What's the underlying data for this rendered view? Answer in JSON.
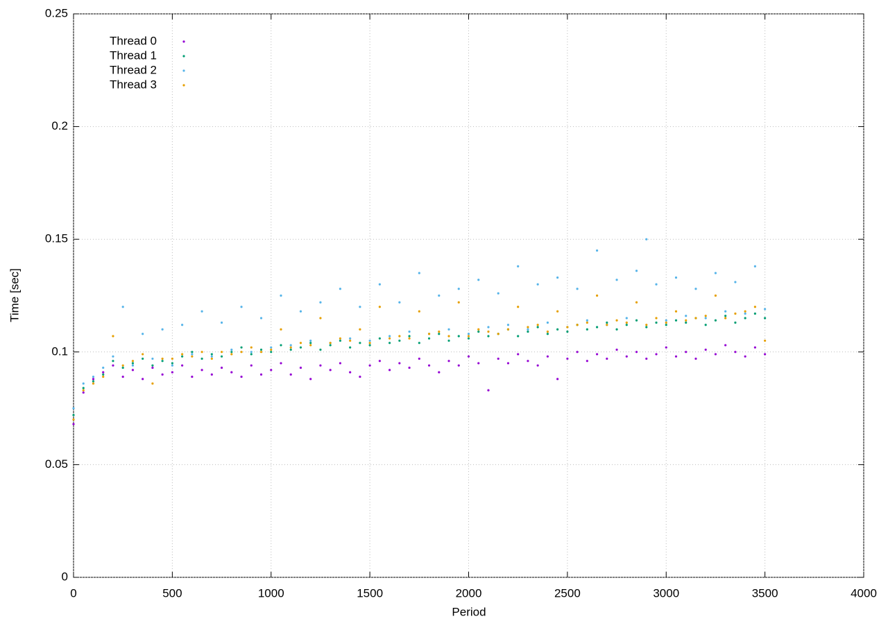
{
  "chart_data": {
    "type": "scatter",
    "x_label": "Period",
    "y_label": "Time [sec]",
    "xlim": [
      0,
      4000
    ],
    "ylim": [
      0,
      0.25
    ],
    "xticks": [
      0,
      500,
      1000,
      1500,
      2000,
      2500,
      3000,
      3500,
      4000
    ],
    "yticks": [
      0,
      0.05,
      0.1,
      0.15,
      0.2,
      0.25
    ],
    "grid": true,
    "legend": "top-left",
    "x": [
      0,
      50,
      100,
      150,
      200,
      250,
      300,
      350,
      400,
      450,
      500,
      550,
      600,
      650,
      700,
      750,
      800,
      850,
      900,
      950,
      1000,
      1050,
      1100,
      1150,
      1200,
      1250,
      1300,
      1350,
      1400,
      1450,
      1500,
      1550,
      1600,
      1650,
      1700,
      1750,
      1800,
      1850,
      1900,
      1950,
      2000,
      2050,
      2100,
      2150,
      2200,
      2250,
      2300,
      2350,
      2400,
      2450,
      2500,
      2550,
      2600,
      2650,
      2700,
      2750,
      2800,
      2850,
      2900,
      2950,
      3000,
      3050,
      3100,
      3150,
      3200,
      3250,
      3300,
      3350,
      3400,
      3450,
      3500
    ],
    "series": [
      {
        "name": "Thread 0",
        "color": "#9400d3",
        "values": [
          0.068,
          0.082,
          0.088,
          0.091,
          0.094,
          0.089,
          0.092,
          0.088,
          0.093,
          0.09,
          0.091,
          0.094,
          0.089,
          0.092,
          0.09,
          0.093,
          0.091,
          0.089,
          0.094,
          0.09,
          0.092,
          0.095,
          0.09,
          0.093,
          0.088,
          0.094,
          0.092,
          0.095,
          0.091,
          0.089,
          0.094,
          0.096,
          0.092,
          0.095,
          0.093,
          0.097,
          0.094,
          0.091,
          0.096,
          0.094,
          0.098,
          0.095,
          0.083,
          0.097,
          0.095,
          0.099,
          0.096,
          0.094,
          0.098,
          0.088,
          0.097,
          0.1,
          0.096,
          0.099,
          0.097,
          0.101,
          0.098,
          0.1,
          0.097,
          0.099,
          0.102,
          0.098,
          0.1,
          0.097,
          0.101,
          0.099,
          0.103,
          0.1,
          0.098,
          0.102,
          0.099
        ]
      },
      {
        "name": "Thread 1",
        "color": "#009e73",
        "values": [
          0.072,
          0.084,
          0.087,
          0.09,
          0.096,
          0.093,
          0.095,
          0.097,
          0.094,
          0.096,
          0.095,
          0.098,
          0.1,
          0.097,
          0.099,
          0.098,
          0.1,
          0.102,
          0.099,
          0.101,
          0.1,
          0.103,
          0.101,
          0.102,
          0.104,
          0.101,
          0.103,
          0.105,
          0.102,
          0.104,
          0.103,
          0.106,
          0.104,
          0.105,
          0.107,
          0.104,
          0.106,
          0.108,
          0.105,
          0.107,
          0.106,
          0.109,
          0.107,
          0.108,
          0.11,
          0.107,
          0.109,
          0.111,
          0.108,
          0.11,
          0.109,
          0.112,
          0.11,
          0.111,
          0.113,
          0.11,
          0.112,
          0.114,
          0.111,
          0.113,
          0.112,
          0.114,
          0.113,
          0.115,
          0.112,
          0.114,
          0.116,
          0.113,
          0.115,
          0.117,
          0.115
        ]
      },
      {
        "name": "Thread 2",
        "color": "#56b4e9",
        "values": [
          0.075,
          0.086,
          0.089,
          0.093,
          0.098,
          0.12,
          0.094,
          0.108,
          0.097,
          0.11,
          0.094,
          0.112,
          0.099,
          0.118,
          0.098,
          0.113,
          0.101,
          0.12,
          0.1,
          0.115,
          0.102,
          0.125,
          0.103,
          0.118,
          0.105,
          0.122,
          0.104,
          0.128,
          0.106,
          0.12,
          0.105,
          0.13,
          0.107,
          0.122,
          0.109,
          0.135,
          0.108,
          0.125,
          0.11,
          0.128,
          0.108,
          0.132,
          0.111,
          0.126,
          0.112,
          0.138,
          0.11,
          0.13,
          0.113,
          0.133,
          0.111,
          0.128,
          0.114,
          0.145,
          0.112,
          0.132,
          0.115,
          0.136,
          0.15,
          0.13,
          0.114,
          0.133,
          0.116,
          0.128,
          0.115,
          0.135,
          0.118,
          0.131,
          0.117,
          0.138,
          0.119
        ]
      },
      {
        "name": "Thread 3",
        "color": "#e69f00",
        "values": [
          0.07,
          0.083,
          0.086,
          0.089,
          0.107,
          0.094,
          0.096,
          0.099,
          0.086,
          0.097,
          0.097,
          0.099,
          0.098,
          0.1,
          0.097,
          0.1,
          0.099,
          0.1,
          0.102,
          0.1,
          0.101,
          0.11,
          0.102,
          0.104,
          0.103,
          0.115,
          0.104,
          0.106,
          0.105,
          0.11,
          0.104,
          0.12,
          0.106,
          0.107,
          0.106,
          0.118,
          0.108,
          0.109,
          0.107,
          0.122,
          0.107,
          0.11,
          0.109,
          0.108,
          0.11,
          0.12,
          0.111,
          0.112,
          0.109,
          0.118,
          0.111,
          0.112,
          0.113,
          0.125,
          0.112,
          0.114,
          0.113,
          0.122,
          0.112,
          0.115,
          0.113,
          0.118,
          0.114,
          0.115,
          0.116,
          0.125,
          0.115,
          0.117,
          0.118,
          0.12,
          0.105
        ]
      }
    ]
  }
}
